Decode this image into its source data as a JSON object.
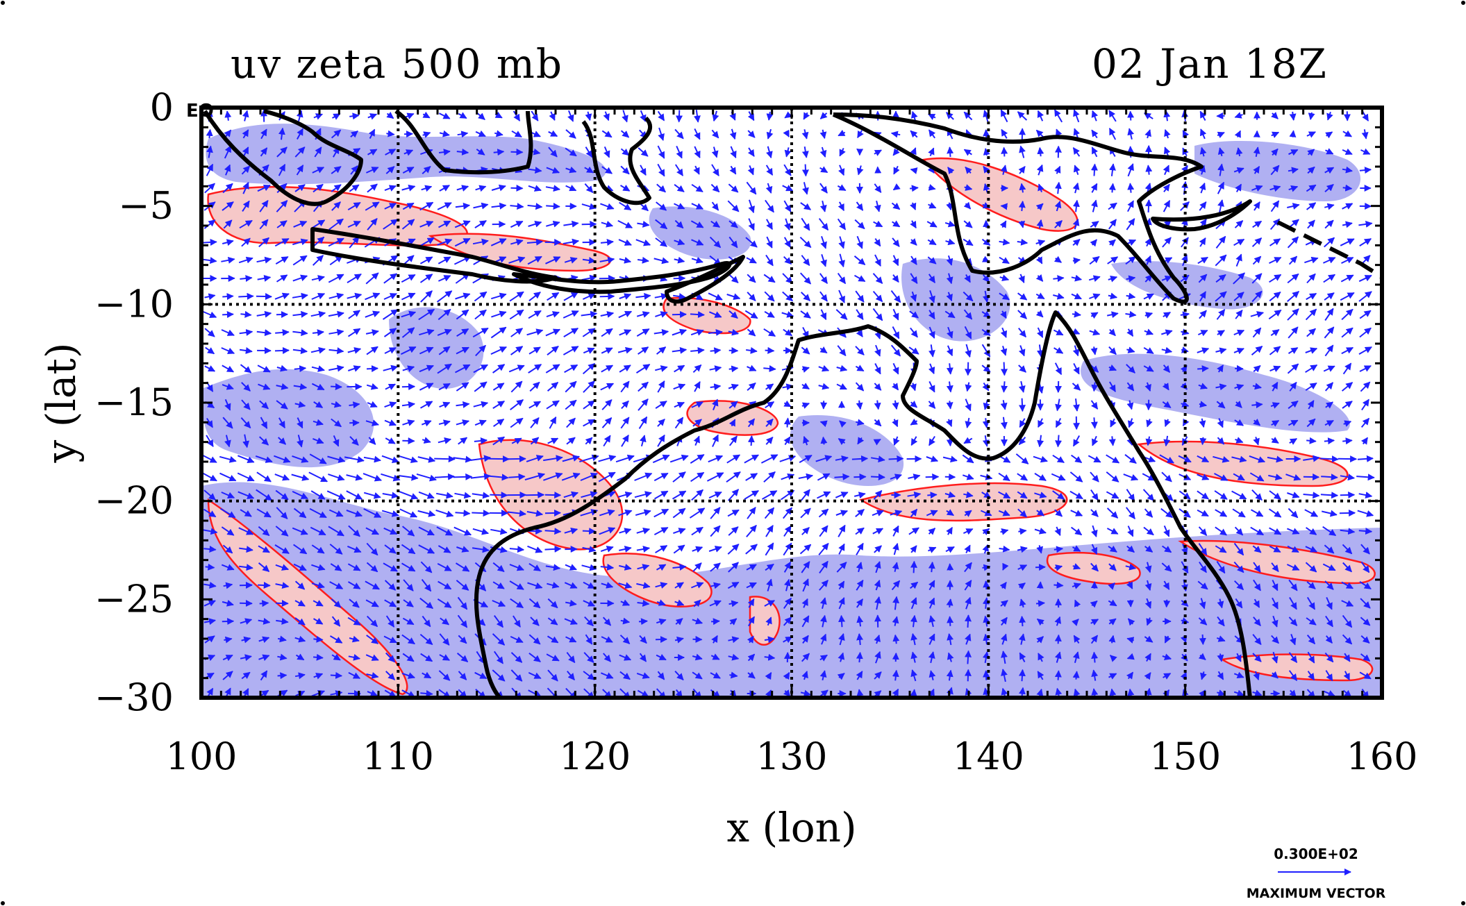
{
  "header": {
    "title_left": "uv zeta 500 mb",
    "title_right": "02 Jan 18Z"
  },
  "colors": {
    "vector": "#1f1fff",
    "negative_fill": "#b0b0f2",
    "positive_fill": "#f6c8c8",
    "positive_contour": "#ff1c1c",
    "coastline": "#000000",
    "grid": "#000000"
  },
  "chart_data": {
    "type": "map",
    "xlabel": "x (lon)",
    "ylabel": "y (lat)",
    "xlim": [
      100,
      160
    ],
    "ylim": [
      -30,
      0
    ],
    "x_ticks": [
      "100",
      "110",
      "120",
      "130",
      "140",
      "150",
      "160"
    ],
    "y_ticks": [
      "0",
      "−5",
      "−10",
      "−15",
      "−20",
      "−25",
      "−30"
    ],
    "grid": true,
    "corner_label": "EQ",
    "reference_vector": {
      "value_label": "0.300E+02",
      "caption": "MAXIMUM VECTOR"
    }
  }
}
